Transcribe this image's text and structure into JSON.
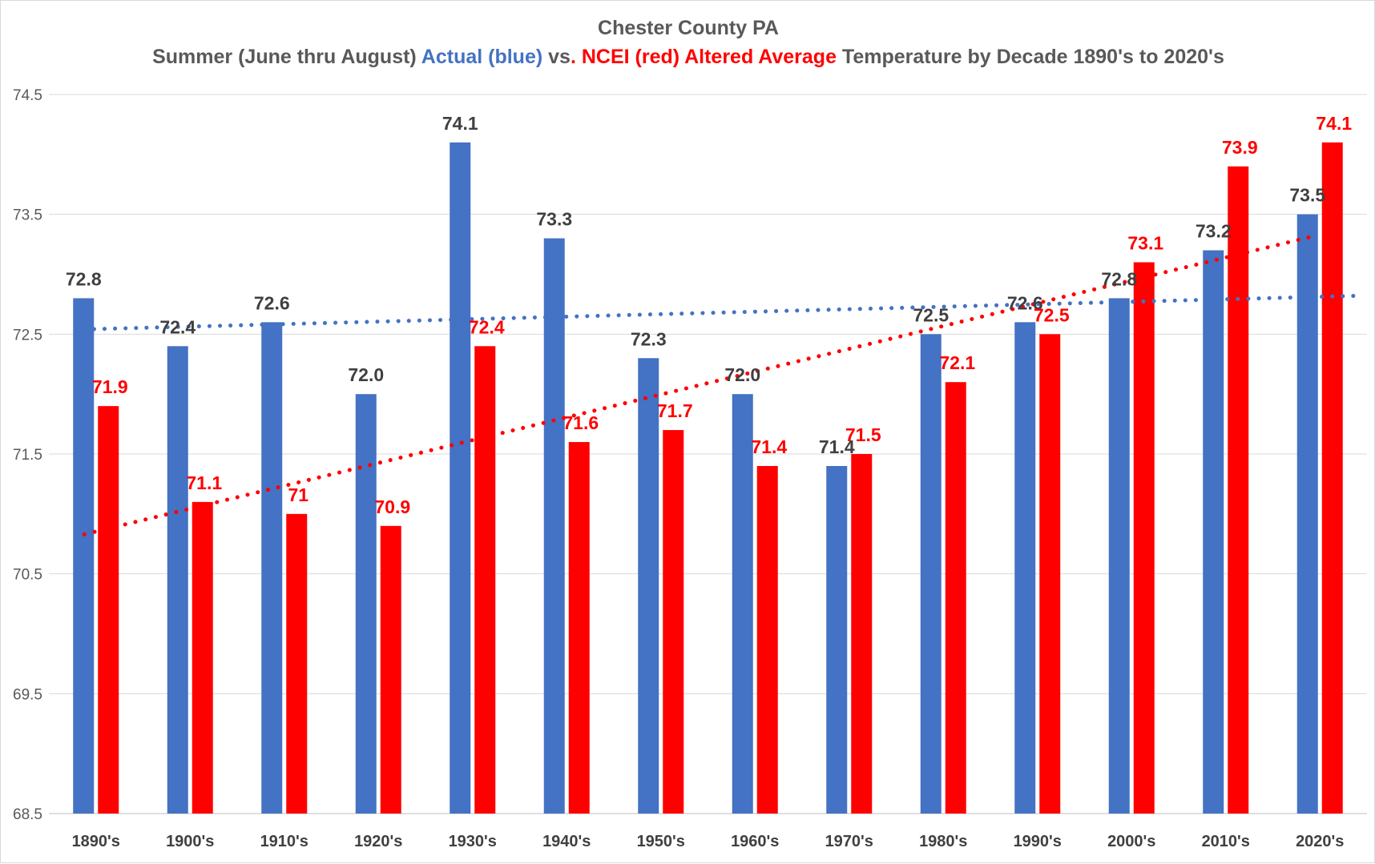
{
  "chart_data": {
    "type": "bar",
    "title": "Chester County PA",
    "subtitle_parts": [
      {
        "text": "Summer (June thru August) ",
        "color": "#595959"
      },
      {
        "text": "Actual (blue)",
        "color": "#4472c4"
      },
      {
        "text": " vs",
        "color": "#595959"
      },
      {
        "text": ". NCEI (red) Altered Average",
        "color": "#ff0000"
      },
      {
        "text": " Temperature by Decade 1890's to 2020's",
        "color": "#595959"
      }
    ],
    "categories": [
      "1890's",
      "1900's",
      "1910's",
      "1920's",
      "1930's",
      "1940's",
      "1950's",
      "1960's",
      "1970's",
      "1980's",
      "1990's",
      "2000's",
      "2010's",
      "2020's"
    ],
    "series": [
      {
        "color": "#4472c4",
        "values": [
          72.8,
          72.4,
          72.6,
          72.0,
          74.1,
          73.3,
          72.3,
          72.0,
          71.4,
          72.5,
          72.6,
          72.8,
          73.2,
          73.5
        ],
        "labels": [
          "72.8",
          "72.4",
          "72.6",
          "72.0",
          "74.1",
          "73.3",
          "72.3",
          "72.0",
          "71.4",
          "72.5",
          "72.6",
          "72.8",
          "73.2",
          "73.5"
        ],
        "trendline": {
          "type": "linear",
          "style": "dotted",
          "start": 72.54,
          "end": 72.82
        }
      },
      {
        "color": "#ff0000",
        "values": [
          71.9,
          71.1,
          71.0,
          70.9,
          72.4,
          71.6,
          71.7,
          71.4,
          71.5,
          72.1,
          72.5,
          73.1,
          73.9,
          74.1
        ],
        "labels": [
          "71.9",
          "71.1",
          "71",
          "70.9",
          "72.4",
          "71.6",
          "71.7",
          "71.4",
          "71.5",
          "72.1",
          "72.5",
          "73.1",
          "73.9",
          "74.1"
        ],
        "trendline": {
          "type": "linear",
          "style": "dotted",
          "start": 70.83,
          "end": 73.31
        }
      }
    ],
    "yticks": [
      "74.5",
      "73.5",
      "72.5",
      "71.5",
      "70.5",
      "69.5",
      "68.5"
    ],
    "ylim": [
      68.5,
      74.5
    ],
    "xlabel": "",
    "ylabel": "",
    "grid": true,
    "legend": "none"
  }
}
